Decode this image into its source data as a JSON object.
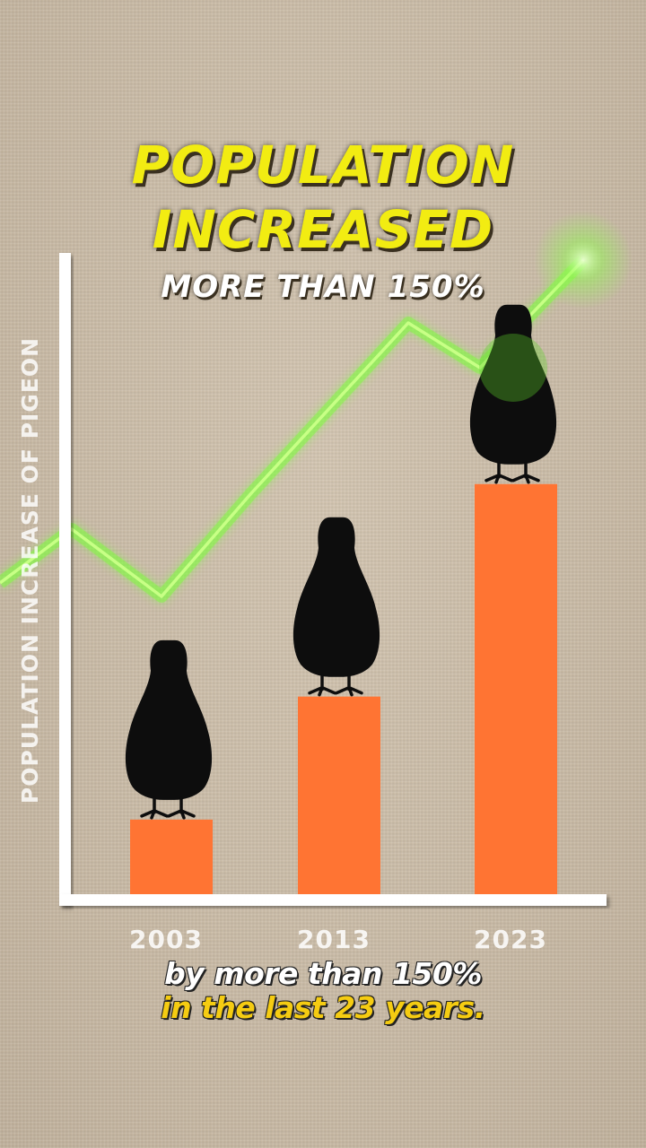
{
  "headline": {
    "line1": "POPULATION",
    "line2": "INCREASED",
    "sub": "MORE THAN 150%"
  },
  "caption": {
    "line1": "by more than 150%",
    "line2": "in the last 23 years."
  },
  "colors": {
    "headline": "#f2ec12",
    "bar": "#ff7433",
    "trend": "#7dff3a",
    "caption_accent": "#f5cc12",
    "axis": "#ffffff",
    "pigeon": "#0d0d0d"
  },
  "chart_data": {
    "type": "bar",
    "title": "POPULATION INCREASED MORE THAN 150%",
    "xlabel": "",
    "ylabel": "POPULATION INCREASE OF PIGEON",
    "categories": [
      "2003",
      "2013",
      "2023"
    ],
    "values": [
      1.0,
      2.65,
      5.5
    ],
    "ylim": [
      0,
      8.6
    ],
    "grid": false,
    "annotations": [
      "pigeon silhouette standing on each bar",
      "glowing green upward trend line"
    ]
  }
}
